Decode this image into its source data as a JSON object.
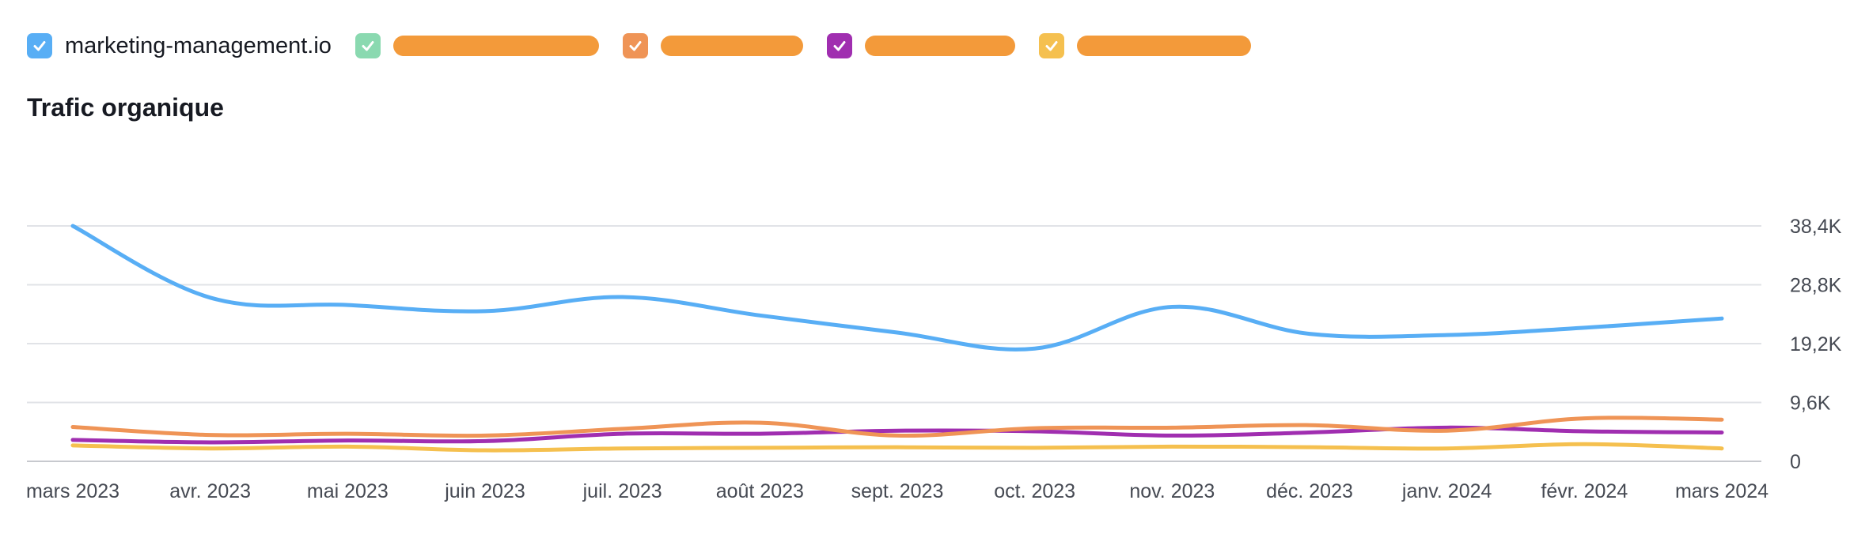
{
  "legend": {
    "items": [
      {
        "label": "marketing-management.io",
        "color": "#58aef5",
        "checked": true,
        "masked": false
      },
      {
        "label": "",
        "color": "#8ad9b0",
        "checked": true,
        "masked": true
      },
      {
        "label": "",
        "color": "#ef9456",
        "checked": true,
        "masked": true
      },
      {
        "label": "",
        "color": "#a02eb0",
        "checked": true,
        "masked": true
      },
      {
        "label": "",
        "color": "#f5c04f",
        "checked": true,
        "masked": true
      }
    ],
    "mask_color": "#f39a3a"
  },
  "title": "Trafic organique",
  "chart_data": {
    "type": "line",
    "x": [
      "mars 2023",
      "avr. 2023",
      "mai 2023",
      "juin 2023",
      "juil. 2023",
      "août 2023",
      "sept. 2023",
      "oct. 2023",
      "nov. 2023",
      "déc. 2023",
      "janv. 2024",
      "févr. 2024",
      "mars 2024"
    ],
    "y_ticks": [
      0,
      9600,
      19200,
      28800,
      38400
    ],
    "y_tick_labels": [
      "0",
      "9,6K",
      "19,2K",
      "28,8K",
      "38,4K"
    ],
    "ylim": [
      0,
      38400
    ],
    "grid": true,
    "series": [
      {
        "name": "marketing-management.io",
        "color": "#58aef5",
        "values": [
          38400,
          26700,
          25500,
          24500,
          26800,
          23800,
          21000,
          18400,
          25200,
          20800,
          20600,
          21800,
          23300
        ]
      },
      {
        "color": "#ef9456",
        "values": [
          5600,
          4300,
          4500,
          4200,
          5300,
          6300,
          4200,
          5400,
          5500,
          5900,
          5000,
          7000,
          6800
        ]
      },
      {
        "color": "#a02eb0",
        "values": [
          3500,
          3100,
          3400,
          3300,
          4500,
          4500,
          5000,
          4900,
          4200,
          4700,
          5500,
          4900,
          4700
        ]
      },
      {
        "color": "#f5c04f",
        "values": [
          2600,
          2100,
          2400,
          1800,
          2100,
          2200,
          2300,
          2200,
          2400,
          2300,
          2100,
          2800,
          2100
        ]
      }
    ]
  }
}
